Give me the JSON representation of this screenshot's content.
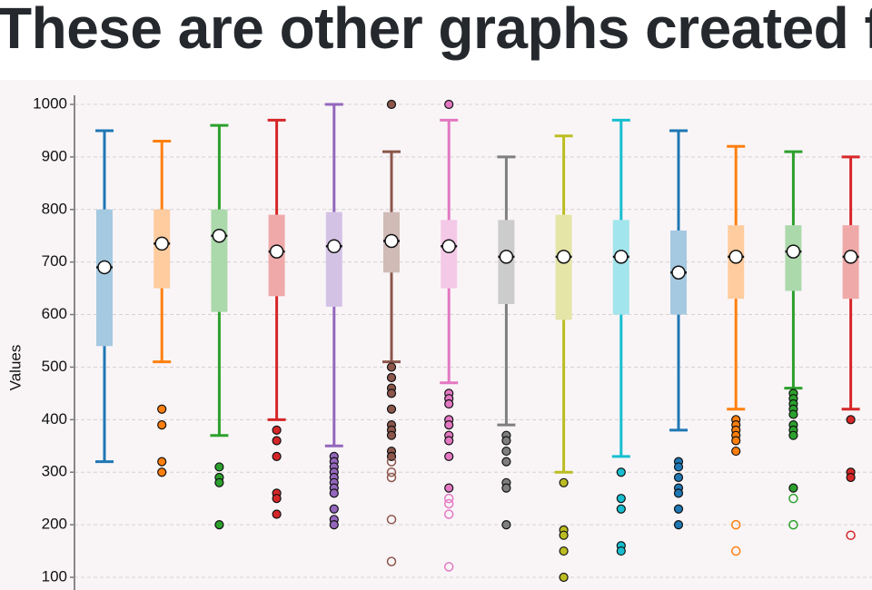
{
  "heading": "These are other graphs created f",
  "chart_data": {
    "type": "box",
    "y_label": "Values",
    "ylim": [
      100,
      1000
    ],
    "yticks": [
      100,
      200,
      300,
      400,
      500,
      600,
      700,
      800,
      900,
      1000
    ],
    "grid": true,
    "series": [
      {
        "color": "#1f77b4",
        "whisker_low": 320,
        "q1": 540,
        "median": 690,
        "q3": 800,
        "whisker_high": 950,
        "outliers": [],
        "extreme_outliers": []
      },
      {
        "color": "#ff7f0e",
        "whisker_low": 510,
        "q1": 650,
        "median": 735,
        "q3": 800,
        "whisker_high": 930,
        "outliers": [
          420,
          390,
          320,
          300
        ],
        "extreme_outliers": []
      },
      {
        "color": "#2ca02c",
        "whisker_low": 370,
        "q1": 605,
        "median": 750,
        "q3": 800,
        "whisker_high": 960,
        "outliers": [
          310,
          290,
          280,
          200
        ],
        "extreme_outliers": []
      },
      {
        "color": "#d62728",
        "whisker_low": 400,
        "q1": 635,
        "median": 720,
        "q3": 790,
        "whisker_high": 970,
        "outliers": [
          380,
          360,
          330,
          260,
          250,
          220
        ],
        "extreme_outliers": []
      },
      {
        "color": "#9467bd",
        "whisker_low": 350,
        "q1": 615,
        "median": 730,
        "q3": 795,
        "whisker_high": 1000,
        "outliers": [
          330,
          320,
          310,
          300,
          290,
          280,
          270,
          260,
          230,
          210,
          200
        ],
        "extreme_outliers": []
      },
      {
        "color": "#8c564b",
        "whisker_low": 510,
        "q1": 680,
        "median": 740,
        "q3": 795,
        "whisker_high": 910,
        "outliers": [
          1000,
          500,
          480,
          460,
          450,
          420,
          390,
          380,
          370,
          340,
          330
        ],
        "extreme_outliers": [
          320,
          300,
          290,
          210,
          130
        ]
      },
      {
        "color": "#e377c2",
        "whisker_low": 470,
        "q1": 650,
        "median": 730,
        "q3": 780,
        "whisker_high": 970,
        "outliers": [
          1000,
          450,
          440,
          430,
          400,
          390,
          370,
          360,
          330,
          270
        ],
        "extreme_outliers": [
          250,
          240,
          220,
          120
        ]
      },
      {
        "color": "#7f7f7f",
        "whisker_low": 390,
        "q1": 620,
        "median": 710,
        "q3": 780,
        "whisker_high": 900,
        "outliers": [
          370,
          360,
          340,
          320,
          280,
          270,
          200
        ],
        "extreme_outliers": []
      },
      {
        "color": "#bcbd22",
        "whisker_low": 300,
        "q1": 590,
        "median": 710,
        "q3": 790,
        "whisker_high": 940,
        "outliers": [
          280,
          190,
          180,
          150,
          100
        ],
        "extreme_outliers": []
      },
      {
        "color": "#17becf",
        "whisker_low": 330,
        "q1": 600,
        "median": 710,
        "q3": 780,
        "whisker_high": 970,
        "outliers": [
          300,
          250,
          230,
          160,
          150
        ],
        "extreme_outliers": []
      },
      {
        "color": "#1f77b4",
        "whisker_low": 380,
        "q1": 600,
        "median": 680,
        "q3": 760,
        "whisker_high": 950,
        "outliers": [
          320,
          310,
          290,
          270,
          260,
          230,
          200
        ],
        "extreme_outliers": []
      },
      {
        "color": "#ff7f0e",
        "whisker_low": 420,
        "q1": 630,
        "median": 710,
        "q3": 770,
        "whisker_high": 920,
        "outliers": [
          400,
          390,
          380,
          370,
          360,
          340
        ],
        "extreme_outliers": [
          200,
          150
        ]
      },
      {
        "color": "#2ca02c",
        "whisker_low": 460,
        "q1": 645,
        "median": 720,
        "q3": 770,
        "whisker_high": 910,
        "outliers": [
          450,
          440,
          430,
          420,
          410,
          390,
          380,
          370,
          270
        ],
        "extreme_outliers": [
          250,
          200
        ]
      },
      {
        "color": "#d62728",
        "whisker_low": 420,
        "q1": 630,
        "median": 710,
        "q3": 770,
        "whisker_high": 900,
        "outliers": [
          400,
          300,
          290
        ],
        "extreme_outliers": [
          180
        ]
      }
    ]
  }
}
